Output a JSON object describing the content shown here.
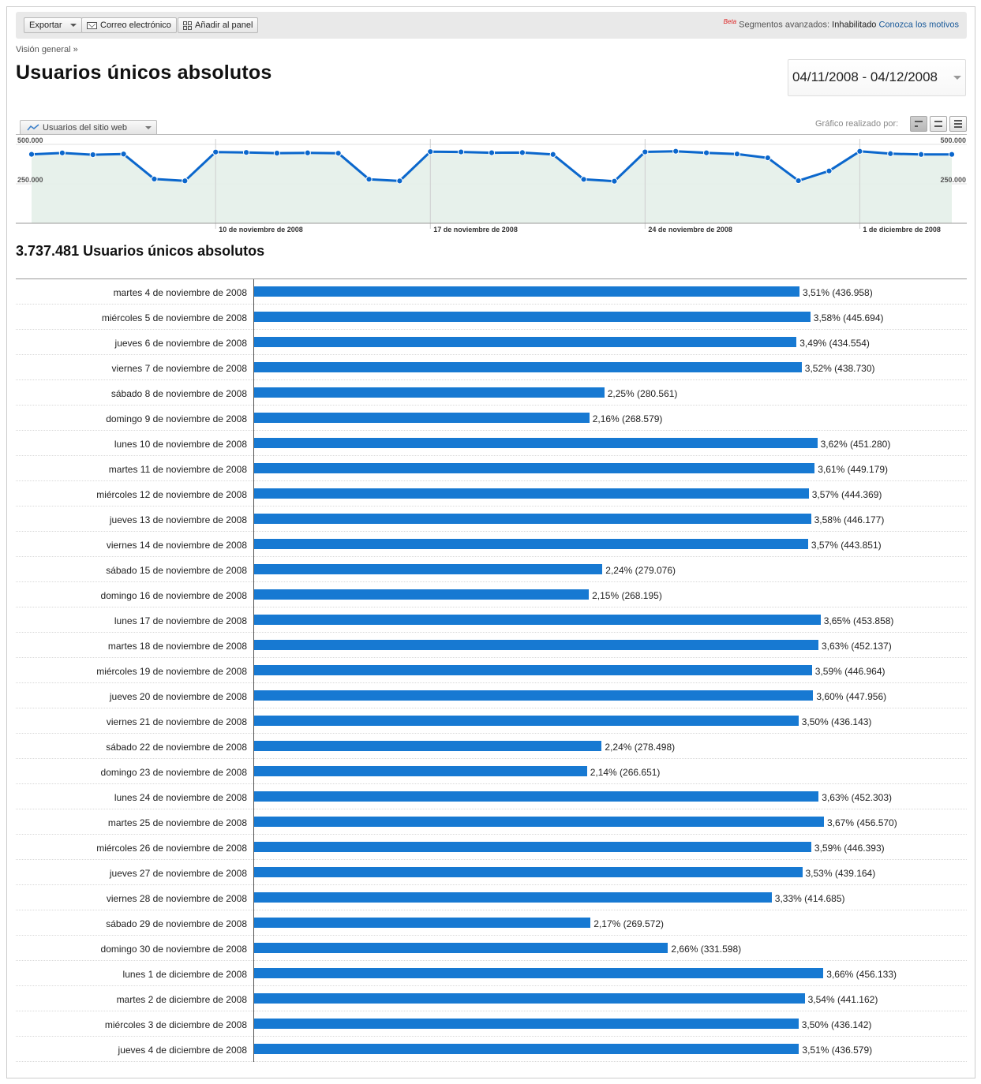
{
  "toolbar": {
    "export_label": "Exportar",
    "email_label": "Correo electrónico",
    "dashboard_label": "Añadir al panel",
    "beta": "Beta",
    "segments_label": "Segmentos avanzados:",
    "segments_state": "Inhabilitado",
    "learn_link": "Conozca los motivos"
  },
  "breadcrumb": "Visión general »",
  "page_title": "Usuarios únicos absolutos",
  "date_range": "04/11/2008 - 04/12/2008",
  "graph": {
    "tab_label": "Usuarios del sitio web",
    "graphed_by_label": "Gráfico realizado por:",
    "y_labels": [
      "500.000",
      "250.000"
    ],
    "x_labels": [
      "10 de noviembre de 2008",
      "17 de noviembre de 2008",
      "24 de noviembre de 2008",
      "1 de diciembre de 2008"
    ]
  },
  "chart_data": {
    "type": "line",
    "title": "Usuarios del sitio web",
    "ylim": [
      0,
      500000
    ],
    "yticks": [
      250000,
      500000
    ],
    "x": [
      "4/11",
      "5/11",
      "6/11",
      "7/11",
      "8/11",
      "9/11",
      "10/11",
      "11/11",
      "12/11",
      "13/11",
      "14/11",
      "15/11",
      "16/11",
      "17/11",
      "18/11",
      "19/11",
      "20/11",
      "21/11",
      "22/11",
      "23/11",
      "24/11",
      "25/11",
      "26/11",
      "27/11",
      "28/11",
      "29/11",
      "30/11",
      "1/12",
      "2/12",
      "3/12",
      "4/12"
    ],
    "values": [
      436958,
      445694,
      434554,
      438730,
      280561,
      268579,
      451280,
      449179,
      444369,
      446177,
      443851,
      279076,
      268195,
      453858,
      452137,
      446964,
      447956,
      436143,
      278498,
      266651,
      452303,
      456570,
      446393,
      439164,
      414685,
      269572,
      331598,
      456133,
      441162,
      436142,
      436579
    ],
    "color": "#0b67cc"
  },
  "total_label": "3.737.481 Usuarios únicos absolutos",
  "bar_max": 456570,
  "rows": [
    {
      "label": "martes 4 de noviembre de 2008",
      "value": 436958,
      "text": "3,51% (436.958)"
    },
    {
      "label": "miércoles 5 de noviembre de 2008",
      "value": 445694,
      "text": "3,58% (445.694)"
    },
    {
      "label": "jueves 6 de noviembre de 2008",
      "value": 434554,
      "text": "3,49% (434.554)"
    },
    {
      "label": "viernes 7 de noviembre de 2008",
      "value": 438730,
      "text": "3,52% (438.730)"
    },
    {
      "label": "sábado 8 de noviembre de 2008",
      "value": 280561,
      "text": "2,25% (280.561)"
    },
    {
      "label": "domingo 9 de noviembre de 2008",
      "value": 268579,
      "text": "2,16% (268.579)"
    },
    {
      "label": "lunes 10 de noviembre de 2008",
      "value": 451280,
      "text": "3,62% (451.280)"
    },
    {
      "label": "martes 11 de noviembre de 2008",
      "value": 449179,
      "text": "3,61% (449.179)"
    },
    {
      "label": "miércoles 12 de noviembre de 2008",
      "value": 444369,
      "text": "3,57% (444.369)"
    },
    {
      "label": "jueves 13 de noviembre de 2008",
      "value": 446177,
      "text": "3,58% (446.177)"
    },
    {
      "label": "viernes 14 de noviembre de 2008",
      "value": 443851,
      "text": "3,57% (443.851)"
    },
    {
      "label": "sábado 15 de noviembre de 2008",
      "value": 279076,
      "text": "2,24% (279.076)"
    },
    {
      "label": "domingo 16 de noviembre de 2008",
      "value": 268195,
      "text": "2,15% (268.195)"
    },
    {
      "label": "lunes 17 de noviembre de 2008",
      "value": 453858,
      "text": "3,65% (453.858)"
    },
    {
      "label": "martes 18 de noviembre de 2008",
      "value": 452137,
      "text": "3,63% (452.137)"
    },
    {
      "label": "miércoles 19 de noviembre de 2008",
      "value": 446964,
      "text": "3,59% (446.964)"
    },
    {
      "label": "jueves 20 de noviembre de 2008",
      "value": 447956,
      "text": "3,60% (447.956)"
    },
    {
      "label": "viernes 21 de noviembre de 2008",
      "value": 436143,
      "text": "3,50% (436.143)"
    },
    {
      "label": "sábado 22 de noviembre de 2008",
      "value": 278498,
      "text": "2,24% (278.498)"
    },
    {
      "label": "domingo 23 de noviembre de 2008",
      "value": 266651,
      "text": "2,14% (266.651)"
    },
    {
      "label": "lunes 24 de noviembre de 2008",
      "value": 452303,
      "text": "3,63% (452.303)"
    },
    {
      "label": "martes 25 de noviembre de 2008",
      "value": 456570,
      "text": "3,67% (456.570)"
    },
    {
      "label": "miércoles 26 de noviembre de 2008",
      "value": 446393,
      "text": "3,59% (446.393)"
    },
    {
      "label": "jueves 27 de noviembre de 2008",
      "value": 439164,
      "text": "3,53% (439.164)"
    },
    {
      "label": "viernes 28 de noviembre de 2008",
      "value": 414685,
      "text": "3,33% (414.685)"
    },
    {
      "label": "sábado 29 de noviembre de 2008",
      "value": 269572,
      "text": "2,17% (269.572)"
    },
    {
      "label": "domingo 30 de noviembre de 2008",
      "value": 331598,
      "text": "2,66% (331.598)"
    },
    {
      "label": "lunes 1 de diciembre de 2008",
      "value": 456133,
      "text": "3,66% (456.133)"
    },
    {
      "label": "martes 2 de diciembre de 2008",
      "value": 441162,
      "text": "3,54% (441.162)"
    },
    {
      "label": "miércoles 3 de diciembre de 2008",
      "value": 436142,
      "text": "3,50% (436.142)"
    },
    {
      "label": "jueves 4 de diciembre de 2008",
      "value": 436579,
      "text": "3,51% (436.579)"
    }
  ]
}
